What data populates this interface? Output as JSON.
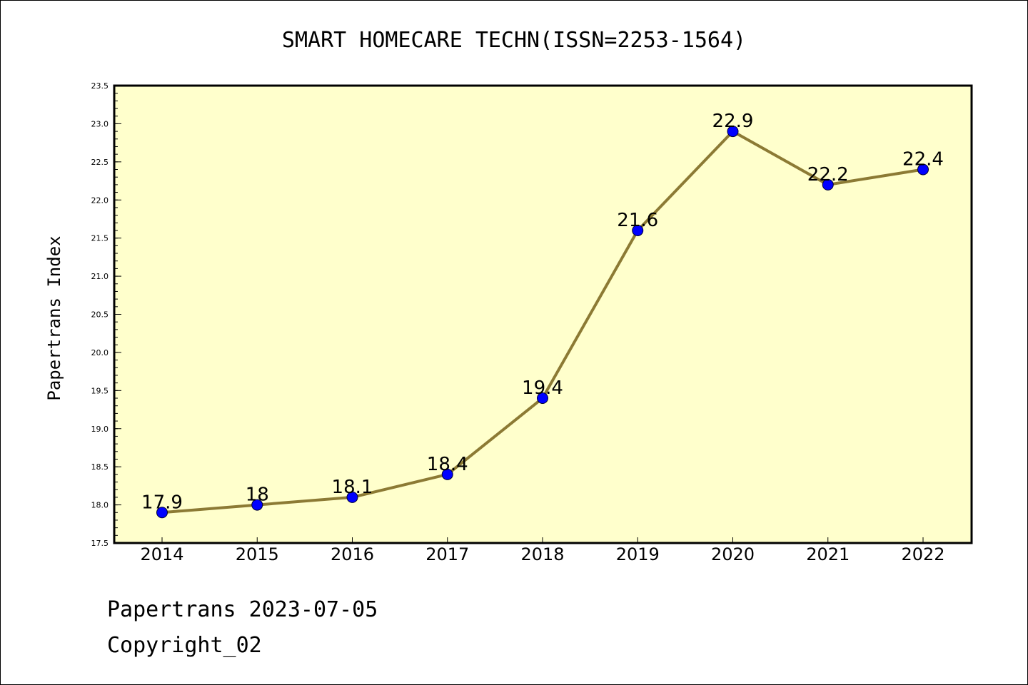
{
  "footer": {
    "line1": "Papertrans 2023-07-05",
    "line2": "Copyright_02"
  },
  "colors": {
    "plot_background": "#ffffcc",
    "line": "#8c7a34",
    "marker": "#0000ff",
    "frame": "#000000"
  },
  "chart_data": {
    "type": "line",
    "title": "SMART HOMECARE TECHN(ISSN=2253-1564)",
    "xlabel": "",
    "ylabel": "Papertrans Index",
    "categories": [
      "2014",
      "2015",
      "2016",
      "2017",
      "2018",
      "2019",
      "2020",
      "2021",
      "2022"
    ],
    "series": [
      {
        "values": [
          17.9,
          18.0,
          18.1,
          18.4,
          19.4,
          21.6,
          22.9,
          22.2,
          22.4
        ],
        "labels": [
          "17.9",
          "18",
          "18.1",
          "18.4",
          "19.4",
          "21.6",
          "22.9",
          "22.2",
          "22.4"
        ]
      }
    ],
    "ylim": [
      17.5,
      23.5
    ],
    "yticks": [
      "17.5",
      "18.0",
      "18.5",
      "19.0",
      "19.5",
      "20.0",
      "20.5",
      "21.0",
      "21.5",
      "22.0",
      "22.5",
      "23.0",
      "23.5"
    ],
    "grid": false,
    "legend": "none"
  }
}
